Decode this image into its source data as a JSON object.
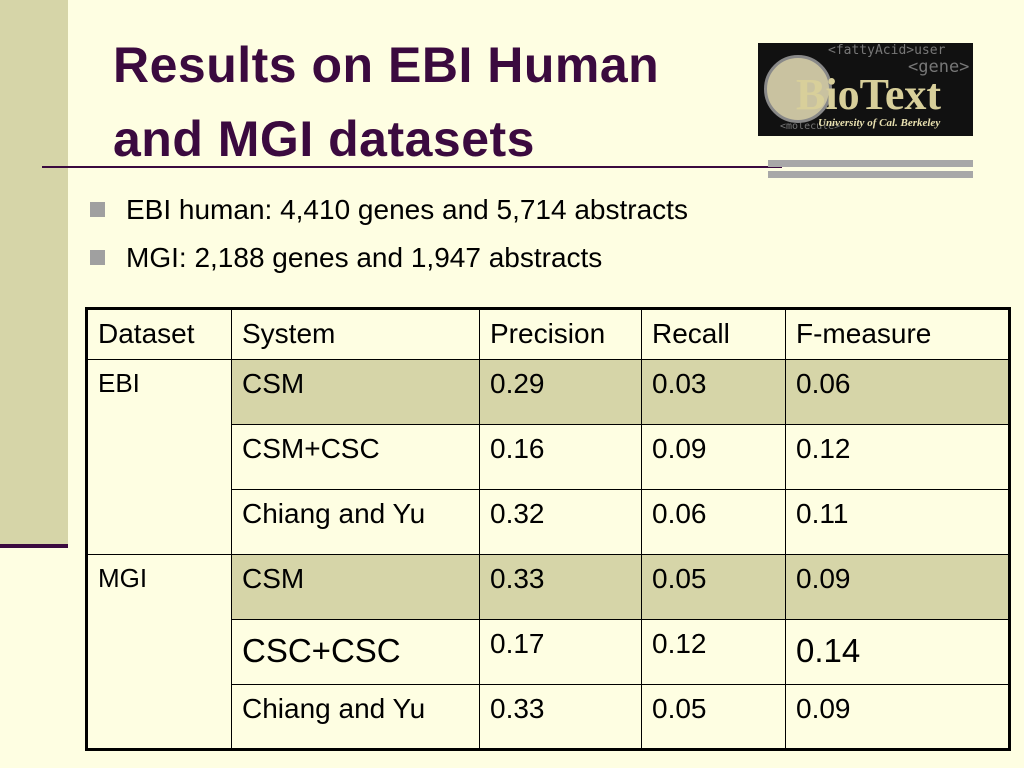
{
  "title": "Results on EBI Human and MGI datasets",
  "logo": {
    "name": "BioText",
    "subtitle": "University of Cal. Berkeley",
    "tags": [
      "<fattyAcid>user",
      "<gene>",
      "<molecule>"
    ]
  },
  "bullets": [
    "EBI human: 4,410 genes and 5,714 abstracts",
    "MGI: 2,188 genes and 1,947 abstracts"
  ],
  "table": {
    "header": [
      "Dataset",
      "System",
      "Precision",
      "Recall",
      "F-measure"
    ],
    "groups": [
      {
        "dataset": "EBI",
        "rows": [
          [
            "CSM",
            "0.29",
            "0.03",
            "0.06"
          ],
          [
            "CSM+CSC",
            "0.16",
            "0.09",
            "0.12"
          ],
          [
            "Chiang and Yu",
            "0.32",
            "0.06",
            "0.11"
          ]
        ]
      },
      {
        "dataset": "MGI",
        "rows": [
          [
            "CSM",
            "0.33",
            "0.05",
            "0.09"
          ],
          [
            "CSC+CSC",
            "0.17",
            "0.12",
            "0.14"
          ],
          [
            "Chiang and Yu",
            "0.33",
            "0.05",
            "0.09"
          ]
        ]
      }
    ]
  }
}
